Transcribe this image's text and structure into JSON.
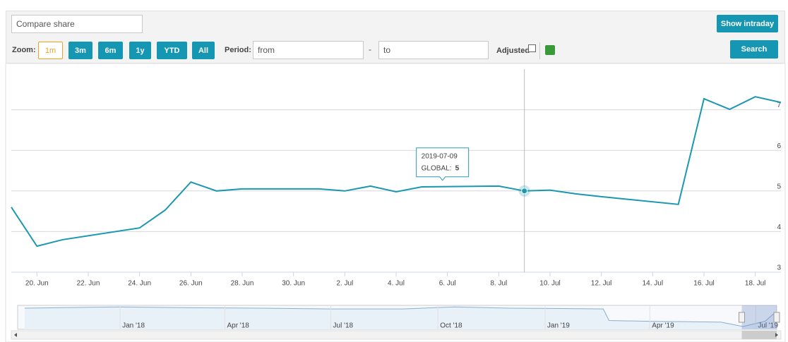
{
  "toolbar": {
    "compare_placeholder": "Compare share",
    "intraday": "Show intraday",
    "zoom_label": "Zoom:",
    "zoom_buttons": [
      "1m",
      "3m",
      "6m",
      "1y",
      "YTD",
      "All"
    ],
    "zoom_selected": "1m",
    "period_label": "Period:",
    "from_placeholder": "from",
    "separator": "-",
    "to_placeholder": "to",
    "adjusted_label": "Adjusted",
    "search": "Search"
  },
  "chart_data": {
    "type": "line",
    "x": [
      "2019-06-19",
      "2019-06-20",
      "2019-06-21",
      "2019-06-24",
      "2019-06-25",
      "2019-06-26",
      "2019-06-27",
      "2019-06-28",
      "2019-07-01",
      "2019-07-02",
      "2019-07-03",
      "2019-07-04",
      "2019-07-05",
      "2019-07-08",
      "2019-07-09",
      "2019-07-10",
      "2019-07-11",
      "2019-07-12",
      "2019-07-15",
      "2019-07-16",
      "2019-07-17",
      "2019-07-18",
      "2019-07-19"
    ],
    "series": [
      {
        "name": "GLOBAL",
        "color": "#1b98b0",
        "values": [
          4.6,
          3.64,
          3.8,
          4.09,
          4.53,
          5.22,
          5.0,
          5.05,
          5.05,
          5.0,
          5.12,
          4.98,
          5.1,
          5.12,
          5,
          5.02,
          4.93,
          4.86,
          4.67,
          7.27,
          7.01,
          7.32,
          7.18
        ]
      }
    ],
    "xlim": [
      "2019-06-19",
      "2019-07-19"
    ],
    "xticks": [
      {
        "value": "2019-06-20",
        "label": "20. Jun"
      },
      {
        "value": "2019-06-22",
        "label": "22. Jun"
      },
      {
        "value": "2019-06-24",
        "label": "24. Jun"
      },
      {
        "value": "2019-06-26",
        "label": "26. Jun"
      },
      {
        "value": "2019-06-28",
        "label": "28. Jun"
      },
      {
        "value": "2019-06-30",
        "label": "30. Jun"
      },
      {
        "value": "2019-07-02",
        "label": "2. Jul"
      },
      {
        "value": "2019-07-04",
        "label": "4. Jul"
      },
      {
        "value": "2019-07-06",
        "label": "6. Jul"
      },
      {
        "value": "2019-07-08",
        "label": "8. Jul"
      },
      {
        "value": "2019-07-10",
        "label": "10. Jul"
      },
      {
        "value": "2019-07-12",
        "label": "12. Jul"
      },
      {
        "value": "2019-07-14",
        "label": "14. Jul"
      },
      {
        "value": "2019-07-16",
        "label": "16. Jul"
      },
      {
        "value": "2019-07-18",
        "label": "18. Jul"
      }
    ],
    "ylim": [
      3,
      8
    ],
    "yticks": [
      3,
      4,
      5,
      6,
      7
    ],
    "grid": true,
    "tooltip": {
      "date": "2019-07-09",
      "label": "GLOBAL:",
      "value": 5
    },
    "navigator": {
      "x": [
        "2017-10-11",
        "2018-01-01",
        "2018-03-01",
        "2018-05-01",
        "2018-07-01",
        "2018-09-01",
        "2018-10-15",
        "2018-12-01",
        "2019-01-15",
        "2019-02-20",
        "2019-02-25",
        "2019-04-01",
        "2019-06-01",
        "2019-06-20",
        "2019-07-09",
        "2019-07-18"
      ],
      "values": [
        8.3,
        8.6,
        8.4,
        8.3,
        8.1,
        8.1,
        8.6,
        8.3,
        8.2,
        8.1,
        5.2,
        5.0,
        4.8,
        3.7,
        5.0,
        7.3
      ],
      "xlim": [
        "2017-10-05",
        "2019-07-19"
      ],
      "ylim": [
        3,
        9
      ],
      "xticks": [
        {
          "value": "2018-01-01",
          "label": "Jan '18"
        },
        {
          "value": "2018-04-01",
          "label": "Apr '18"
        },
        {
          "value": "2018-07-01",
          "label": "Jul '18"
        },
        {
          "value": "2018-10-01",
          "label": "Oct '18"
        },
        {
          "value": "2019-01-01",
          "label": "Jan '19"
        },
        {
          "value": "2019-04-01",
          "label": "Apr '19"
        },
        {
          "value": "2019-07-01",
          "label": "Jul '19"
        }
      ]
    }
  }
}
